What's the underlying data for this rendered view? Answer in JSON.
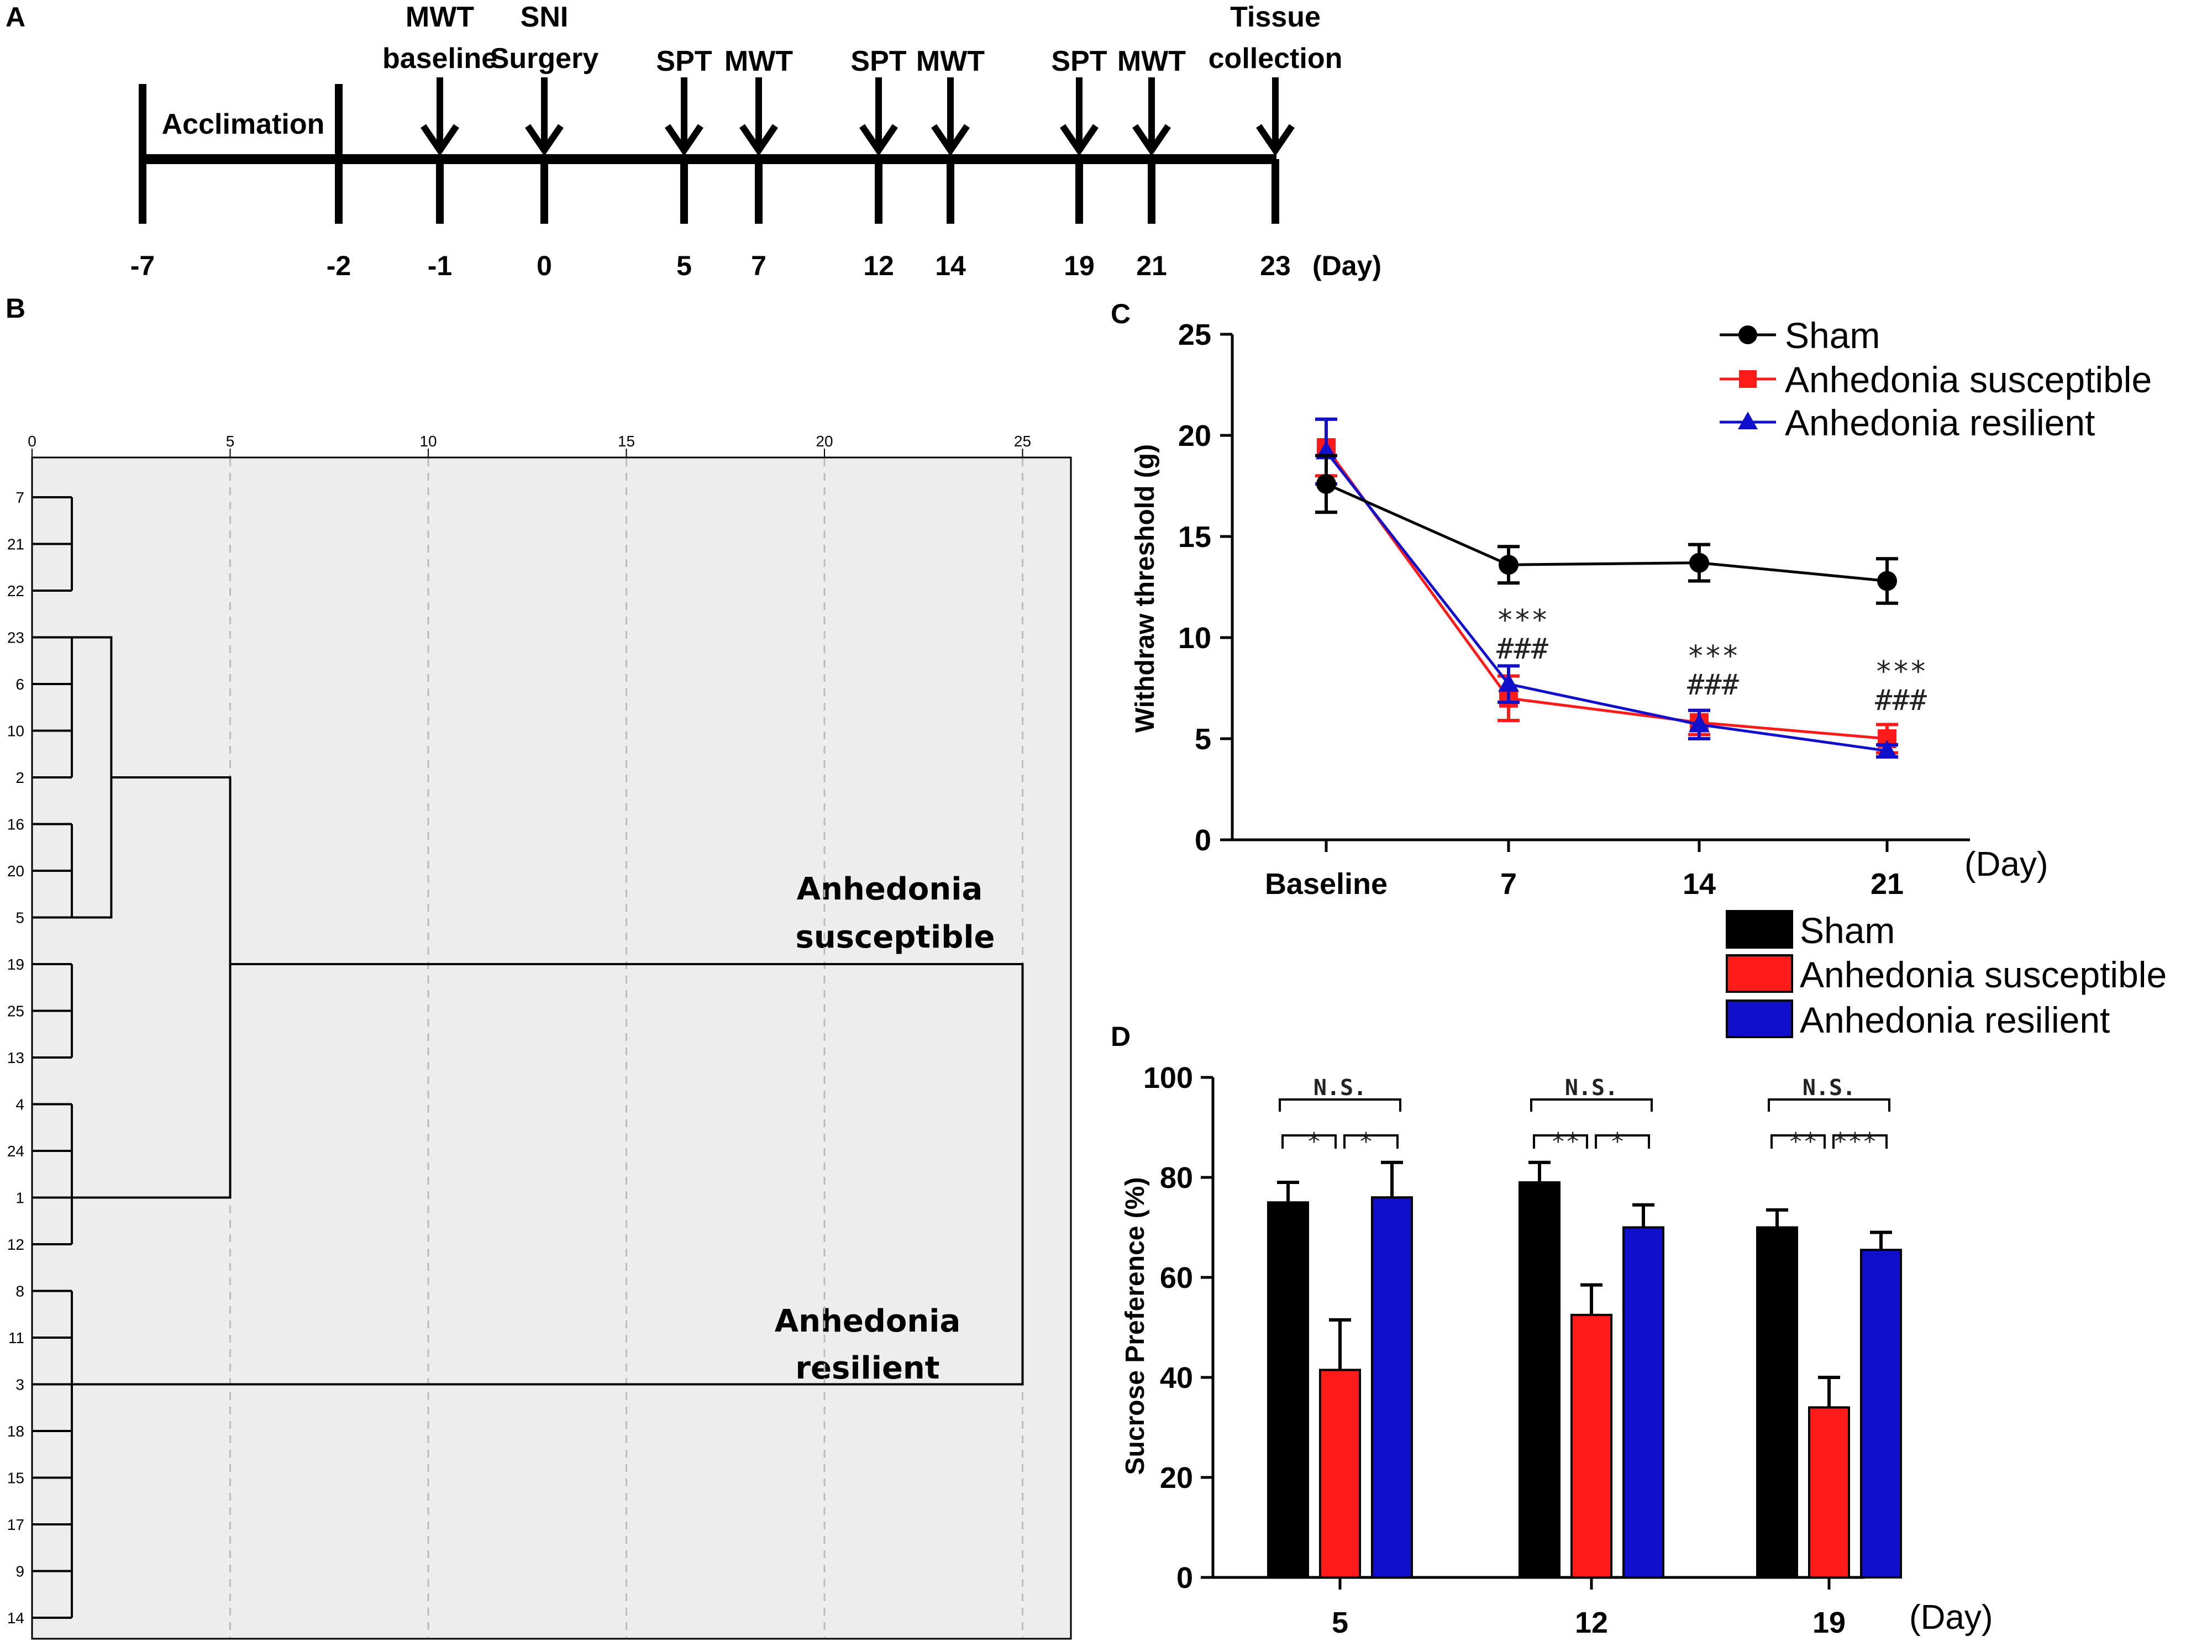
{
  "panel_letters": {
    "a": "A",
    "b": "B",
    "c": "C",
    "d": "D"
  },
  "timeline": {
    "phase_label": "Acclimation",
    "days": [
      "-7",
      "-2",
      "-1",
      "0",
      "5",
      "7",
      "12",
      "14",
      "19",
      "21",
      "23"
    ],
    "day_unit": "(Day)",
    "events": [
      {
        "day": "-1",
        "lines": [
          "MWT",
          "baseline"
        ]
      },
      {
        "day": "0",
        "lines": [
          "SNI",
          "Surgery"
        ]
      },
      {
        "day": "5",
        "lines": [
          "SPT"
        ]
      },
      {
        "day": "7",
        "lines": [
          "MWT"
        ]
      },
      {
        "day": "12",
        "lines": [
          "SPT"
        ]
      },
      {
        "day": "14",
        "lines": [
          "MWT"
        ]
      },
      {
        "day": "19",
        "lines": [
          "SPT"
        ]
      },
      {
        "day": "21",
        "lines": [
          "MWT"
        ]
      },
      {
        "day": "23",
        "lines": [
          "Tissue",
          "collection"
        ]
      }
    ]
  },
  "dendrogram": {
    "scale_ticks": [
      "0",
      "5",
      "10",
      "15",
      "20",
      "25"
    ],
    "leaf_order": [
      "7",
      "21",
      "22",
      "23",
      "6",
      "10",
      "2",
      "16",
      "20",
      "5",
      "19",
      "25",
      "13",
      "4",
      "24",
      "1",
      "12",
      "8",
      "11",
      "3",
      "18",
      "15",
      "17",
      "9",
      "14"
    ],
    "cluster_labels": {
      "susceptible": [
        "Anhedonia",
        "susceptible"
      ],
      "resilient": [
        "Anhedonia",
        "resilient"
      ]
    }
  },
  "colors": {
    "sham": "#000000",
    "susceptible": "#ff1a1a",
    "resilient": "#1010cc"
  },
  "chart_data": [
    {
      "type": "line",
      "title": "",
      "xlabel": "(Day)",
      "ylabel": "Withdraw threshold (g)",
      "categories": [
        "Baseline",
        "7",
        "14",
        "21"
      ],
      "ylim": [
        0,
        25
      ],
      "yticks": [
        "0",
        "5",
        "10",
        "15",
        "20",
        "25"
      ],
      "series": [
        {
          "name": "Sham",
          "values": [
            17.6,
            13.6,
            13.7,
            12.8
          ],
          "errors": [
            1.4,
            0.9,
            0.9,
            1.1
          ]
        },
        {
          "name": "Anhedonia susceptible",
          "values": [
            19.4,
            7.0,
            5.8,
            5.0
          ],
          "errors": [
            1.4,
            1.1,
            0.6,
            0.7
          ]
        },
        {
          "name": "Anhedonia resilient",
          "values": [
            19.2,
            7.7,
            5.7,
            4.4
          ],
          "errors": [
            1.6,
            0.9,
            0.7,
            0.3
          ]
        }
      ],
      "annotations": [
        {
          "category": "7",
          "lines": [
            "***",
            "###"
          ]
        },
        {
          "category": "14",
          "lines": [
            "***",
            "###"
          ]
        },
        {
          "category": "21",
          "lines": [
            "***",
            "###"
          ]
        }
      ]
    },
    {
      "type": "bar",
      "title": "",
      "xlabel": "(Day)",
      "ylabel": "Sucrose Preference (%)",
      "categories": [
        "5",
        "12",
        "19"
      ],
      "ylim": [
        0,
        100
      ],
      "yticks": [
        "0",
        "20",
        "40",
        "60",
        "80",
        "100"
      ],
      "series": [
        {
          "name": "Sham",
          "values": [
            75,
            79,
            70
          ],
          "errors": [
            4,
            4,
            3.5
          ]
        },
        {
          "name": "Anhedonia susceptible",
          "values": [
            41.5,
            52.5,
            34
          ],
          "errors": [
            10,
            6,
            6
          ]
        },
        {
          "name": "Anhedonia resilient",
          "values": [
            76,
            70,
            65.5
          ],
          "errors": [
            7,
            4.5,
            3.5
          ]
        }
      ],
      "significance": [
        {
          "category": "5",
          "outer": "N.S.",
          "left": "*",
          "right": "*"
        },
        {
          "category": "12",
          "outer": "N.S.",
          "left": "**",
          "right": "*"
        },
        {
          "category": "19",
          "outer": "N.S.",
          "left": "**",
          "right": "***"
        }
      ]
    }
  ]
}
